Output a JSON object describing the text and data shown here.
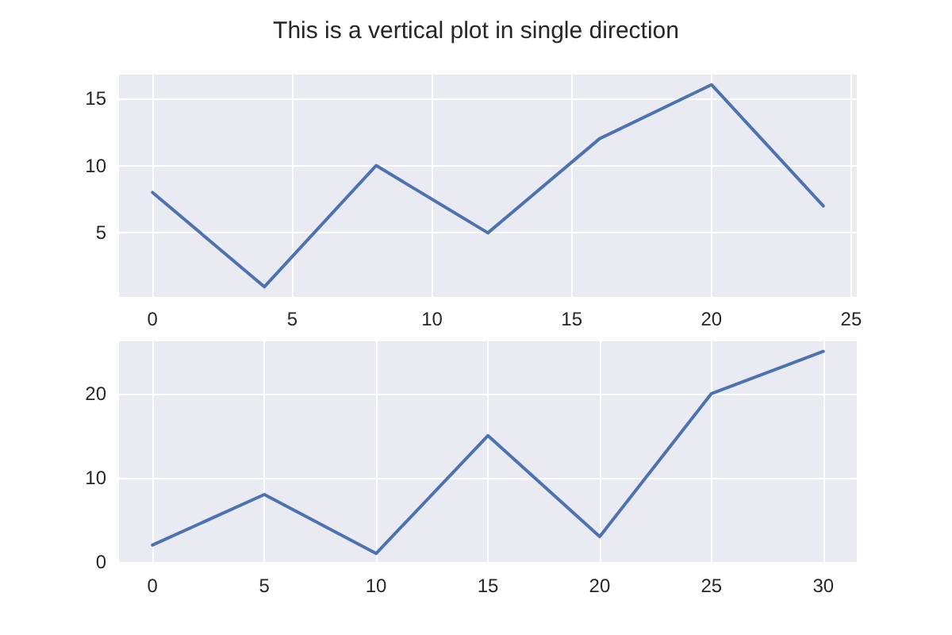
{
  "chart_data": [
    {
      "type": "line",
      "title": "This is a vertical plot in single direction",
      "x": [
        0,
        4,
        8,
        12,
        16,
        20,
        24
      ],
      "series": [
        {
          "color": "#4c72b0",
          "values": [
            8,
            1,
            10,
            5,
            12,
            16,
            7
          ]
        }
      ],
      "xlim": [
        -1.2,
        25.2
      ],
      "xticks": [
        0,
        5,
        10,
        15,
        20,
        25
      ],
      "ylim": [
        0.25,
        16.75
      ],
      "yticks": [
        5,
        10,
        15
      ],
      "grid": true,
      "marker": "none",
      "line_style": "solid"
    },
    {
      "type": "line",
      "x": [
        0,
        5,
        10,
        15,
        20,
        25,
        30
      ],
      "series": [
        {
          "color": "#4c72b0",
          "values": [
            2,
            8,
            1,
            15,
            3,
            20,
            25
          ]
        }
      ],
      "xlim": [
        -1.5,
        31.5
      ],
      "xticks": [
        0,
        5,
        10,
        15,
        20,
        25,
        30
      ],
      "ylim": [
        -0.2,
        26.2
      ],
      "yticks": [
        0,
        10,
        20
      ],
      "grid": true,
      "marker": "none",
      "line_style": "solid"
    }
  ]
}
